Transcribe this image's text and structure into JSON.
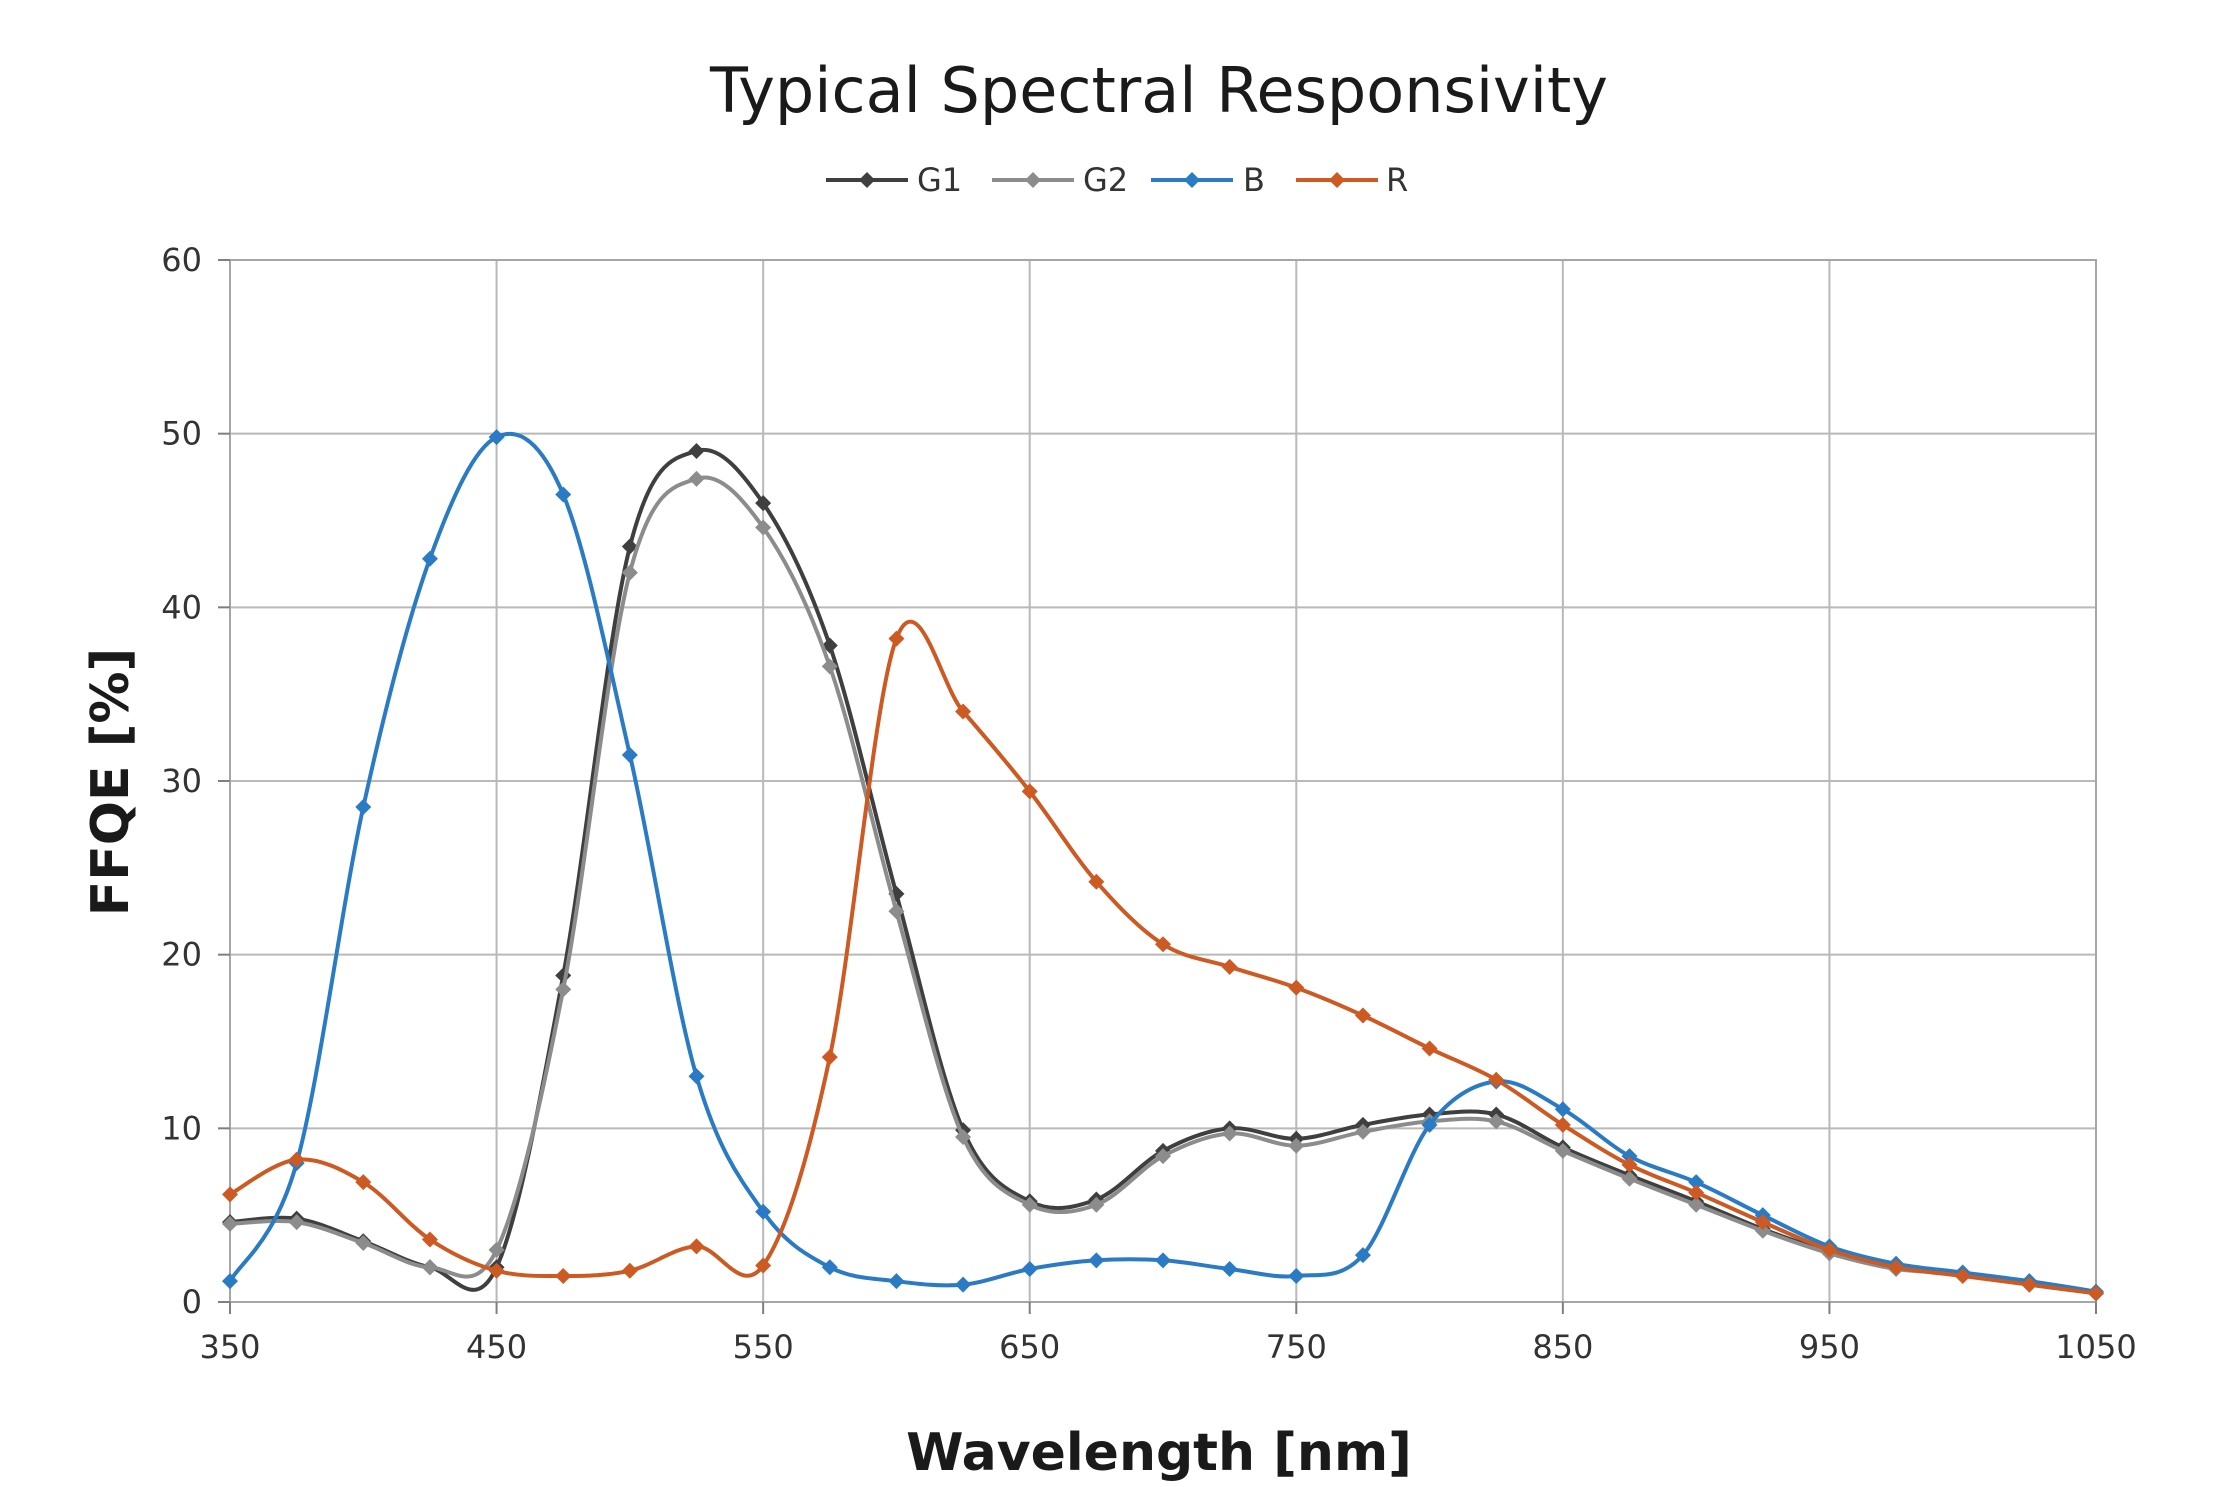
{
  "chart_data": {
    "type": "line",
    "title": "Typical Spectral Responsivity",
    "xlabel": "Wavelength [nm]",
    "ylabel": "FFQE [%]",
    "xlim": [
      350,
      1050
    ],
    "ylim": [
      0,
      60
    ],
    "x_ticks": [
      350,
      450,
      550,
      650,
      750,
      850,
      950,
      1050
    ],
    "y_ticks": [
      0,
      10,
      20,
      30,
      40,
      50,
      60
    ],
    "x_tick_labels": [
      "350",
      "450",
      "550",
      "650",
      "750",
      "850",
      "950",
      "1050"
    ],
    "y_tick_labels": [
      "0",
      "10",
      "20",
      "30",
      "40",
      "50",
      "60"
    ],
    "grid": true,
    "legend_position": "top-center",
    "series": [
      {
        "name": "G1",
        "color": "#3f3f3f",
        "x": [
          350,
          375,
          400,
          425,
          450,
          475,
          500,
          525,
          550,
          575,
          600,
          625,
          650,
          675,
          700,
          725,
          750,
          775,
          800,
          825,
          850,
          875,
          900,
          925,
          950,
          975,
          1000,
          1025,
          1050
        ],
        "y": [
          4.6,
          4.8,
          3.5,
          2.0,
          2.0,
          18.8,
          43.5,
          49.0,
          46.0,
          37.8,
          23.5,
          9.9,
          5.8,
          5.9,
          8.7,
          10.0,
          9.4,
          10.2,
          10.8,
          10.8,
          8.9,
          7.3,
          5.8,
          4.2,
          2.9,
          2.0,
          1.6,
          1.1,
          0.5
        ]
      },
      {
        "name": "G2",
        "color": "#8c8c8c",
        "x": [
          350,
          375,
          400,
          425,
          450,
          475,
          500,
          525,
          550,
          575,
          600,
          625,
          650,
          675,
          700,
          725,
          750,
          775,
          800,
          825,
          850,
          875,
          900,
          925,
          950,
          975,
          1000,
          1025,
          1050
        ],
        "y": [
          4.5,
          4.6,
          3.4,
          2.0,
          3.0,
          18.0,
          42.0,
          47.4,
          44.6,
          36.6,
          22.5,
          9.5,
          5.6,
          5.6,
          8.4,
          9.7,
          9.0,
          9.8,
          10.4,
          10.4,
          8.7,
          7.1,
          5.6,
          4.1,
          2.8,
          1.9,
          1.6,
          1.0,
          0.5
        ]
      },
      {
        "name": "B",
        "color": "#2a7bc4",
        "x": [
          350,
          375,
          400,
          425,
          450,
          475,
          500,
          525,
          550,
          575,
          600,
          625,
          650,
          675,
          700,
          725,
          750,
          775,
          800,
          825,
          850,
          875,
          900,
          925,
          950,
          975,
          1000,
          1025,
          1050
        ],
        "y": [
          1.2,
          8.0,
          28.5,
          42.8,
          49.8,
          46.5,
          31.5,
          13.0,
          5.2,
          2.0,
          1.2,
          1.0,
          1.9,
          2.4,
          2.4,
          1.9,
          1.5,
          2.7,
          10.2,
          12.7,
          11.1,
          8.4,
          6.9,
          5.0,
          3.2,
          2.2,
          1.7,
          1.2,
          0.6
        ]
      },
      {
        "name": "R",
        "color": "#cc5a22",
        "x": [
          350,
          375,
          400,
          425,
          450,
          475,
          500,
          525,
          550,
          575,
          600,
          625,
          650,
          675,
          700,
          725,
          750,
          775,
          800,
          825,
          850,
          875,
          900,
          925,
          950,
          975,
          1000,
          1025,
          1050
        ],
        "y": [
          6.2,
          8.2,
          6.9,
          3.6,
          1.8,
          1.5,
          1.8,
          3.2,
          2.1,
          14.1,
          38.2,
          34.0,
          29.4,
          24.2,
          20.6,
          19.3,
          18.1,
          16.5,
          14.6,
          12.8,
          10.2,
          7.9,
          6.3,
          4.6,
          3.0,
          2.0,
          1.5,
          1.0,
          0.5
        ]
      }
    ]
  }
}
